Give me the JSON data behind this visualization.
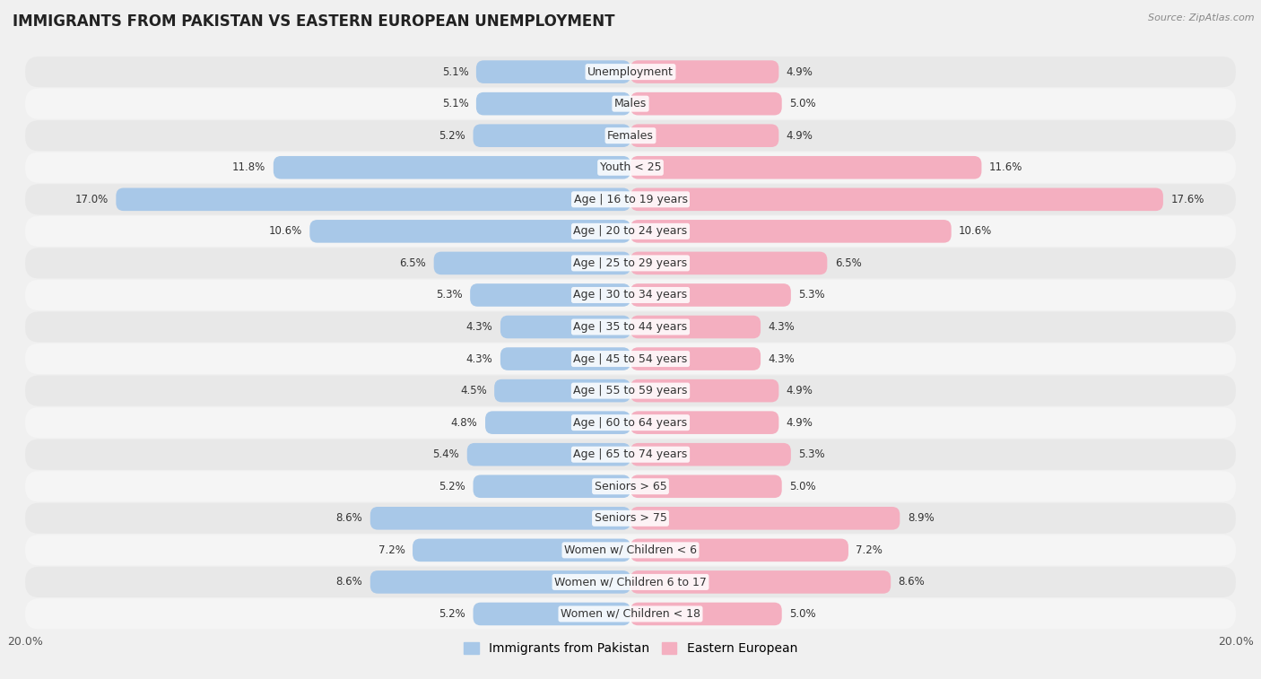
{
  "title": "IMMIGRANTS FROM PAKISTAN VS EASTERN EUROPEAN UNEMPLOYMENT",
  "source": "Source: ZipAtlas.com",
  "categories": [
    "Unemployment",
    "Males",
    "Females",
    "Youth < 25",
    "Age | 16 to 19 years",
    "Age | 20 to 24 years",
    "Age | 25 to 29 years",
    "Age | 30 to 34 years",
    "Age | 35 to 44 years",
    "Age | 45 to 54 years",
    "Age | 55 to 59 years",
    "Age | 60 to 64 years",
    "Age | 65 to 74 years",
    "Seniors > 65",
    "Seniors > 75",
    "Women w/ Children < 6",
    "Women w/ Children 6 to 17",
    "Women w/ Children < 18"
  ],
  "pakistan_values": [
    5.1,
    5.1,
    5.2,
    11.8,
    17.0,
    10.6,
    6.5,
    5.3,
    4.3,
    4.3,
    4.5,
    4.8,
    5.4,
    5.2,
    8.6,
    7.2,
    8.6,
    5.2
  ],
  "eastern_values": [
    4.9,
    5.0,
    4.9,
    11.6,
    17.6,
    10.6,
    6.5,
    5.3,
    4.3,
    4.3,
    4.9,
    4.9,
    5.3,
    5.0,
    8.9,
    7.2,
    8.6,
    5.0
  ],
  "pakistan_color": "#a8c8e8",
  "eastern_color": "#f4afc0",
  "axis_limit": 20.0,
  "bar_height": 0.72,
  "background_color": "#f0f0f0",
  "row_colors_even": "#e8e8e8",
  "row_colors_odd": "#f5f5f5",
  "title_fontsize": 12,
  "label_fontsize": 9,
  "value_fontsize": 8.5,
  "legend_fontsize": 10
}
